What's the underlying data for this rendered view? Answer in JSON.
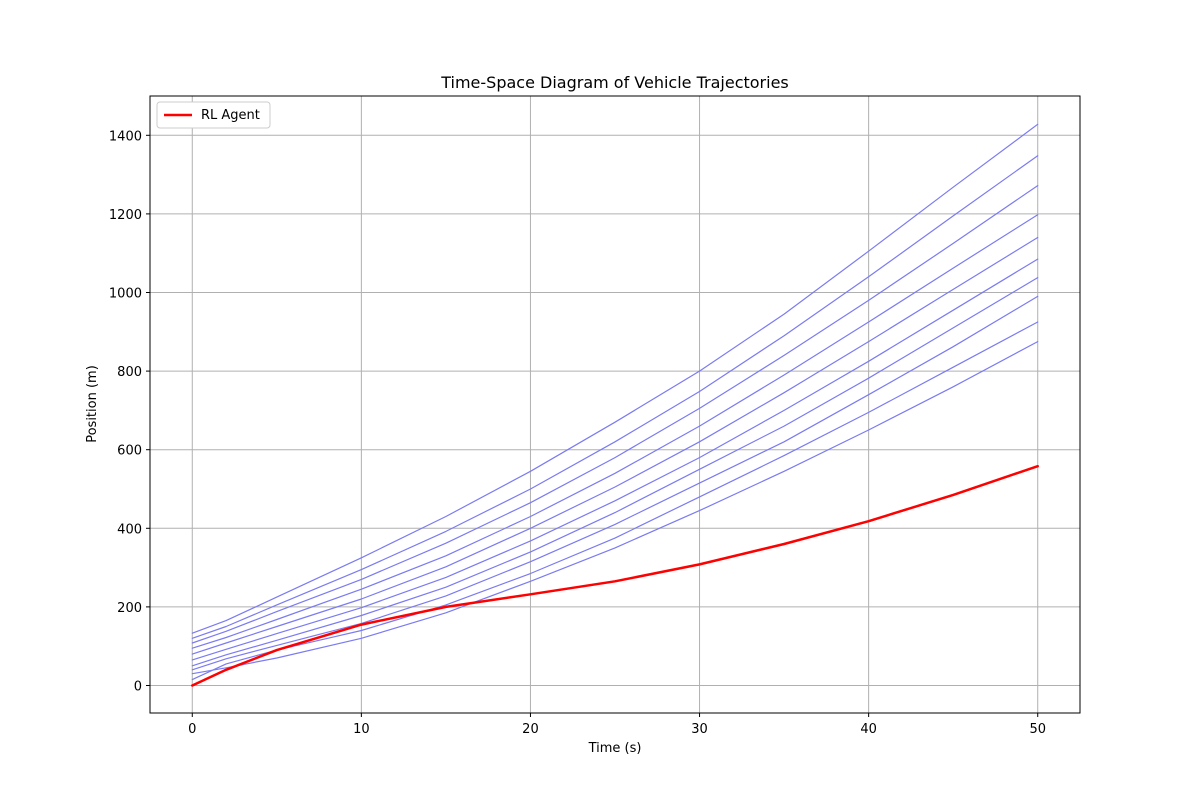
{
  "chart_data": {
    "type": "line",
    "title": "Time-Space Diagram of Vehicle Trajectories",
    "xlabel": "Time (s)",
    "ylabel": "Position (m)",
    "xlim": [
      -2.5,
      52.5
    ],
    "ylim": [
      -70,
      1500
    ],
    "xticks": [
      0,
      10,
      20,
      30,
      40,
      50
    ],
    "yticks": [
      0,
      200,
      400,
      600,
      800,
      1000,
      1200,
      1400
    ],
    "grid": true,
    "legend": {
      "position": "top-left",
      "entries": [
        "RL Agent"
      ]
    },
    "x": [
      0,
      2,
      5,
      10,
      15,
      20,
      25,
      30,
      35,
      40,
      45,
      50
    ],
    "series": [
      {
        "name": "RL Agent",
        "color": "#ff0000",
        "highlight": true,
        "values": [
          0,
          40,
          90,
          155,
          200,
          232,
          265,
          308,
          360,
          418,
          485,
          558
        ]
      },
      {
        "color": "#7b7bf2",
        "values": [
          30,
          45,
          70,
          120,
          185,
          265,
          350,
          445,
          545,
          650,
          760,
          875
        ]
      },
      {
        "color": "#7b7bf2",
        "values": [
          15,
          55,
          90,
          140,
          205,
          285,
          375,
          480,
          585,
          695,
          810,
          925
        ]
      },
      {
        "color": "#7b7bf2",
        "values": [
          40,
          68,
          102,
          158,
          228,
          315,
          410,
          515,
          620,
          740,
          862,
          990
        ]
      },
      {
        "color": "#7b7bf2",
        "values": [
          50,
          78,
          115,
          178,
          250,
          340,
          440,
          550,
          660,
          782,
          910,
          1038
        ]
      },
      {
        "color": "#7b7bf2",
        "values": [
          65,
          92,
          132,
          198,
          275,
          368,
          470,
          580,
          700,
          825,
          955,
          1085
        ]
      },
      {
        "color": "#7b7bf2",
        "values": [
          80,
          108,
          150,
          220,
          302,
          400,
          505,
          620,
          745,
          875,
          1008,
          1140
        ]
      },
      {
        "color": "#7b7bf2",
        "values": [
          95,
          122,
          168,
          245,
          330,
          430,
          540,
          660,
          790,
          925,
          1062,
          1198
        ]
      },
      {
        "color": "#7b7bf2",
        "values": [
          108,
          138,
          188,
          270,
          362,
          465,
          580,
          705,
          840,
          980,
          1125,
          1272
        ]
      },
      {
        "color": "#7b7bf2",
        "values": [
          120,
          150,
          205,
          295,
          392,
          500,
          620,
          748,
          890,
          1040,
          1195,
          1348
        ]
      },
      {
        "color": "#7b7bf2",
        "values": [
          133,
          165,
          225,
          325,
          430,
          545,
          670,
          800,
          945,
          1105,
          1268,
          1428
        ]
      }
    ]
  }
}
